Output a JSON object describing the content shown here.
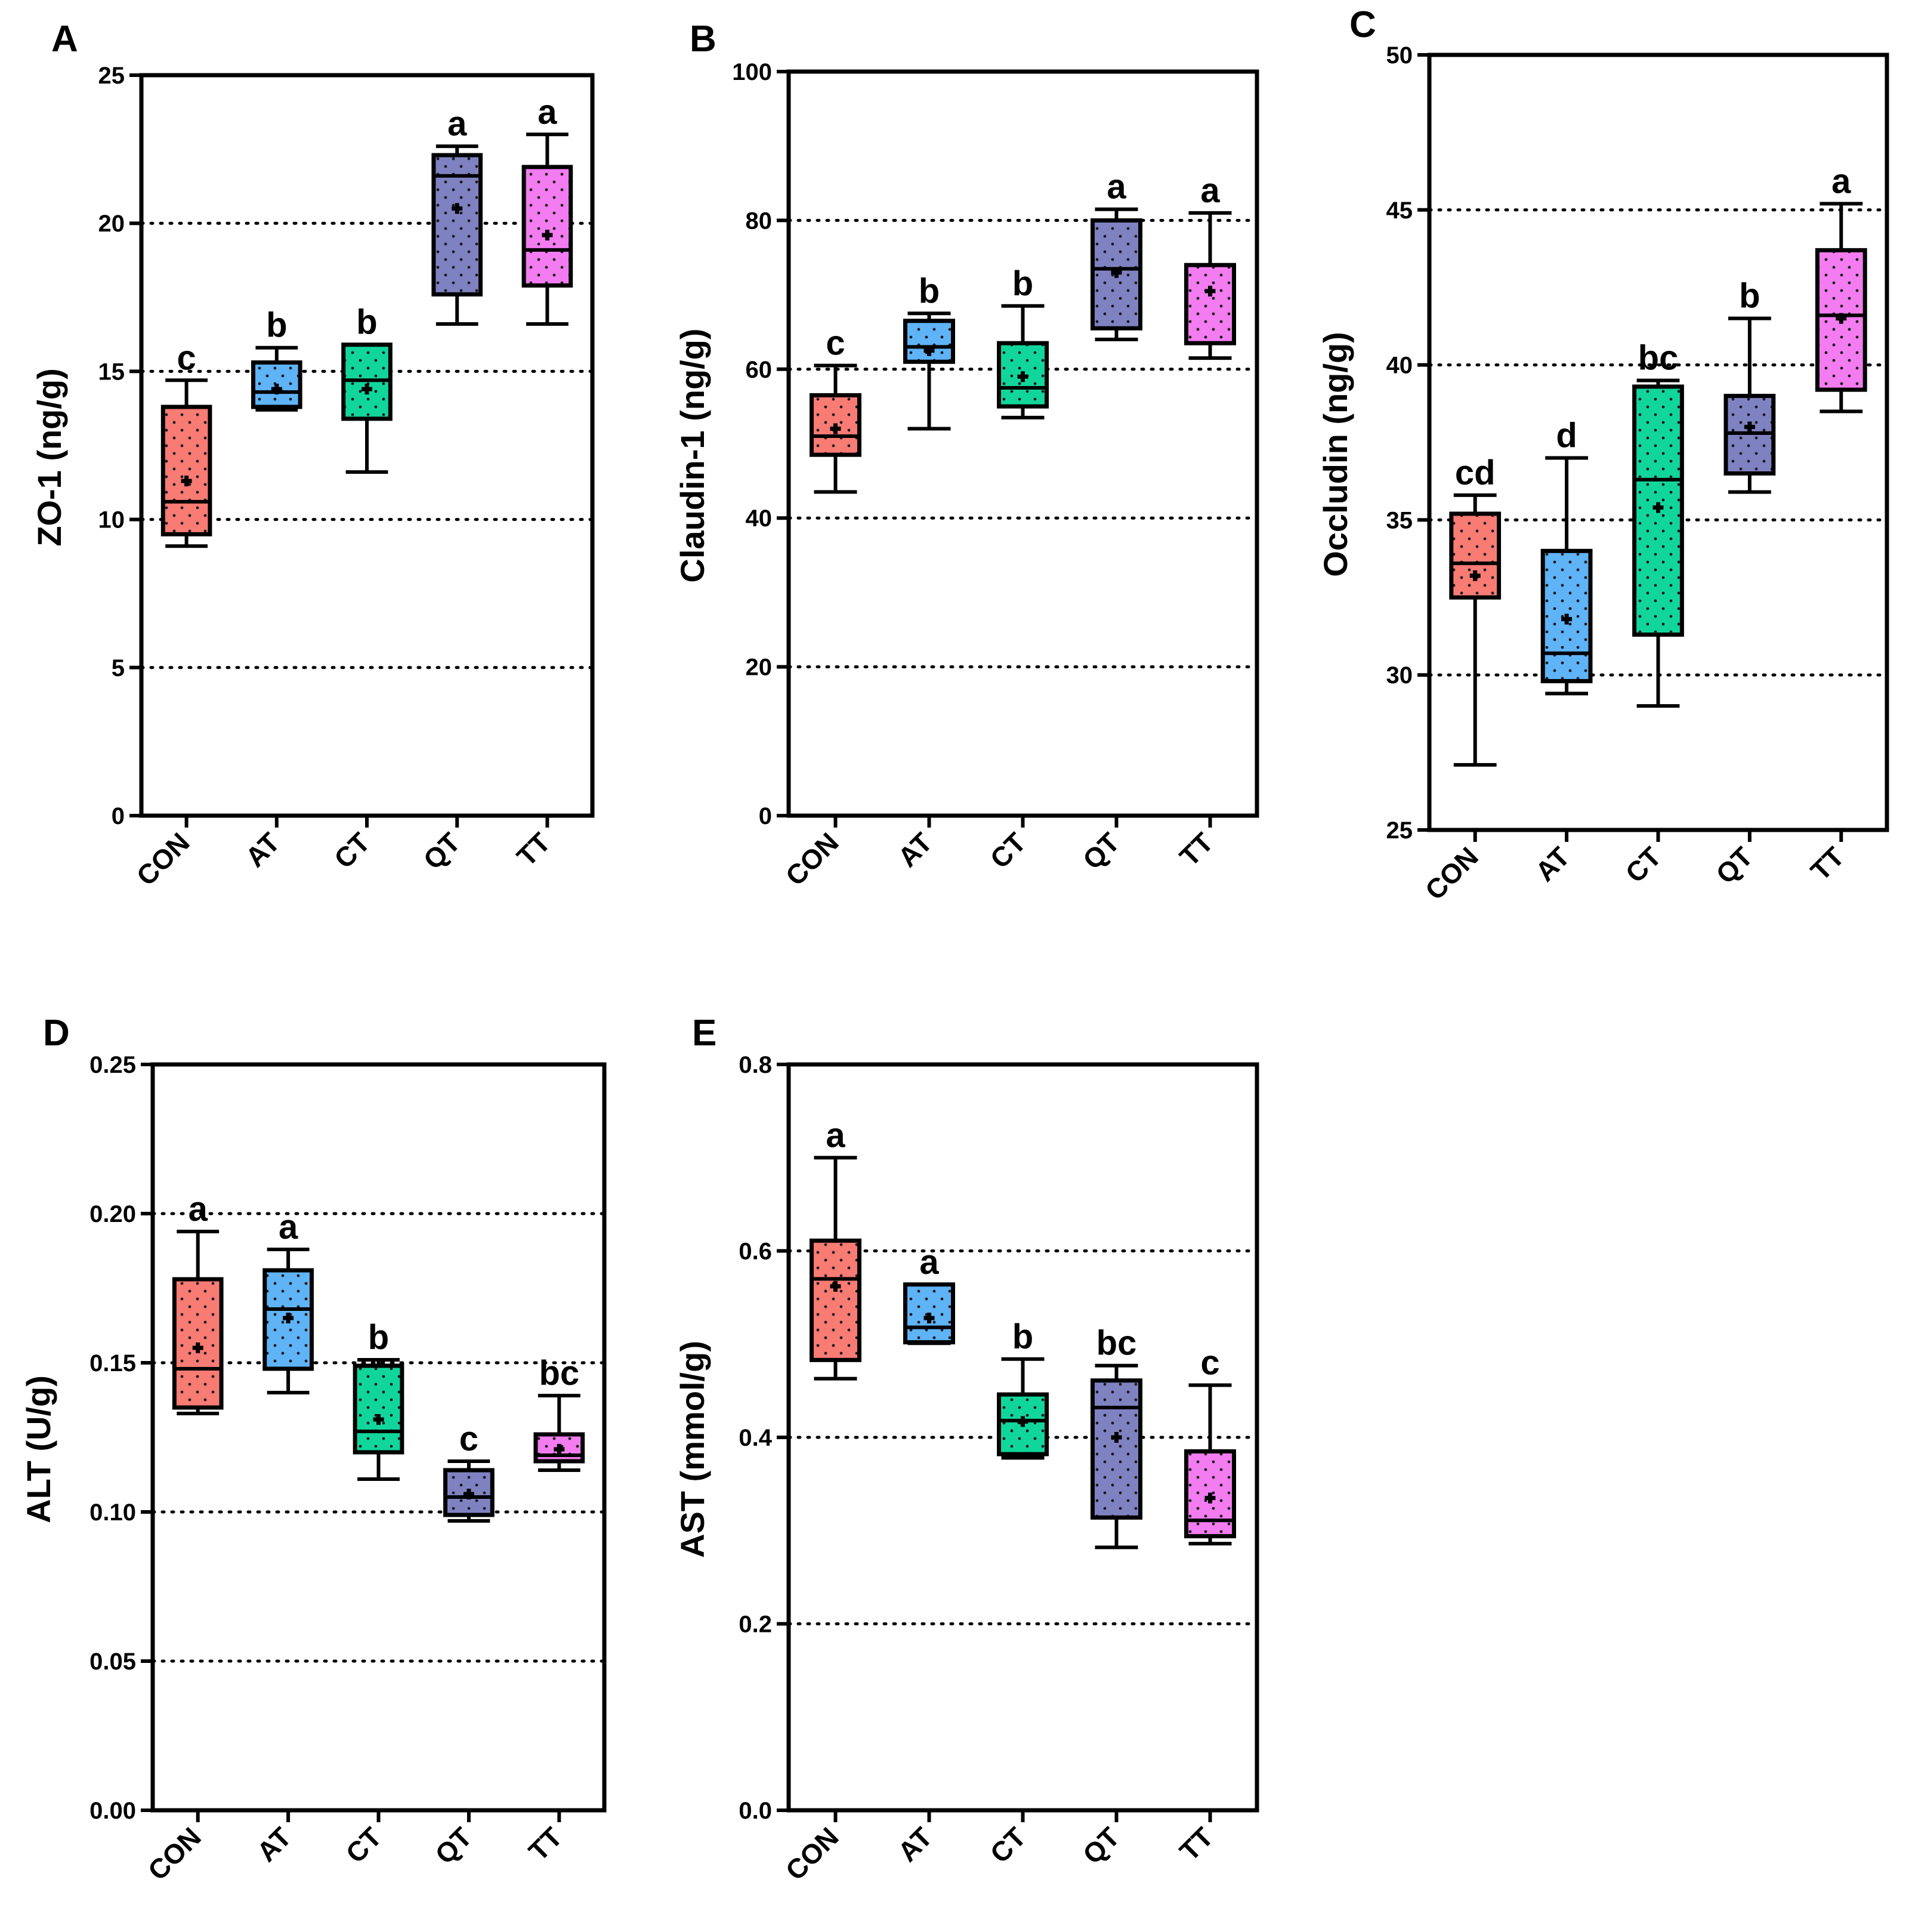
{
  "colors": {
    "CON": "#f87b74",
    "AT": "#5fb3f7",
    "CT": "#11d69c",
    "QT": "#7f82c1",
    "TT": "#f27cf0"
  },
  "chart_data": [
    {
      "panel": "A",
      "type": "box",
      "ylabel": "ZO-1 (ng/g)",
      "ylim": [
        0,
        25
      ],
      "yticks": [
        "0",
        "5",
        "10",
        "15",
        "20",
        "25"
      ],
      "gridlines": [
        5,
        10,
        15,
        20
      ],
      "categories": [
        "CON",
        "AT",
        "CT",
        "QT",
        "TT"
      ],
      "boxes": [
        {
          "min": 9.1,
          "q1": 9.5,
          "median": 10.6,
          "q3": 13.8,
          "max": 14.7,
          "mean": 11.3,
          "sig": "c"
        },
        {
          "min": 13.7,
          "q1": 13.8,
          "median": 14.3,
          "q3": 15.3,
          "max": 15.8,
          "mean": 14.4,
          "sig": "b"
        },
        {
          "min": 11.6,
          "q1": 13.4,
          "median": 14.7,
          "q3": 15.9,
          "max": 15.9,
          "mean": 14.4,
          "sig": "b"
        },
        {
          "min": 16.6,
          "q1": 17.6,
          "median": 21.6,
          "q3": 22.3,
          "max": 22.6,
          "mean": 20.5,
          "sig": "a"
        },
        {
          "min": 16.6,
          "q1": 17.9,
          "median": 19.1,
          "q3": 21.9,
          "max": 23.0,
          "mean": 19.6,
          "sig": "a"
        }
      ]
    },
    {
      "panel": "B",
      "type": "box",
      "ylabel": "Claudin-1 (ng/g)",
      "ylim": [
        0,
        100
      ],
      "yticks": [
        "0",
        "20",
        "40",
        "60",
        "80",
        "100"
      ],
      "gridlines": [
        20,
        40,
        60,
        80
      ],
      "categories": [
        "CON",
        "AT",
        "CT",
        "QT",
        "TT"
      ],
      "boxes": [
        {
          "min": 43.5,
          "q1": 48.5,
          "median": 51.0,
          "q3": 56.5,
          "max": 60.5,
          "mean": 52.0,
          "sig": "c"
        },
        {
          "min": 52.0,
          "q1": 61.0,
          "median": 63.0,
          "q3": 66.5,
          "max": 67.5,
          "mean": 62.5,
          "sig": "b"
        },
        {
          "min": 53.5,
          "q1": 55.0,
          "median": 57.5,
          "q3": 63.5,
          "max": 68.5,
          "mean": 59.0,
          "sig": "b"
        },
        {
          "min": 64.0,
          "q1": 65.5,
          "median": 73.5,
          "q3": 80.0,
          "max": 81.5,
          "mean": 73.0,
          "sig": "a"
        },
        {
          "min": 61.5,
          "q1": 63.5,
          "median": 74.0,
          "q3": 74.0,
          "max": 81.0,
          "mean": 70.5,
          "sig": "a"
        }
      ]
    },
    {
      "panel": "C",
      "type": "box",
      "ylabel": "Occludin (ng/g)",
      "ylim": [
        25,
        50
      ],
      "yticks": [
        "25",
        "30",
        "35",
        "40",
        "45",
        "50"
      ],
      "gridlines": [
        30,
        35,
        40,
        45
      ],
      "categories": [
        "CON",
        "AT",
        "CT",
        "QT",
        "TT"
      ],
      "boxes": [
        {
          "min": 27.1,
          "q1": 32.5,
          "median": 33.6,
          "q3": 35.2,
          "max": 35.8,
          "mean": 33.2,
          "sig": "cd"
        },
        {
          "min": 29.4,
          "q1": 29.8,
          "median": 30.7,
          "q3": 34.0,
          "max": 37.0,
          "mean": 31.8,
          "sig": "d"
        },
        {
          "min": 29.0,
          "q1": 31.3,
          "median": 36.3,
          "q3": 39.3,
          "max": 39.5,
          "mean": 35.4,
          "sig": "bc"
        },
        {
          "min": 35.9,
          "q1": 36.5,
          "median": 37.8,
          "q3": 39.0,
          "max": 41.5,
          "mean": 38.0,
          "sig": "b"
        },
        {
          "min": 38.5,
          "q1": 39.2,
          "median": 41.6,
          "q3": 43.7,
          "max": 45.2,
          "mean": 41.5,
          "sig": "a"
        }
      ]
    },
    {
      "panel": "D",
      "type": "box",
      "ylabel": "ALT (U/g)",
      "ylim": [
        0,
        0.25
      ],
      "yticks": [
        "0.00",
        "0.05",
        "0.10",
        "0.15",
        "0.20",
        "0.25"
      ],
      "gridlines": [
        0.05,
        0.1,
        0.15,
        0.2
      ],
      "categories": [
        "CON",
        "AT",
        "CT",
        "QT",
        "TT"
      ],
      "boxes": [
        {
          "min": 0.133,
          "q1": 0.135,
          "median": 0.148,
          "q3": 0.178,
          "max": 0.194,
          "mean": 0.155,
          "sig": "a"
        },
        {
          "min": 0.14,
          "q1": 0.148,
          "median": 0.168,
          "q3": 0.181,
          "max": 0.188,
          "mean": 0.165,
          "sig": "a"
        },
        {
          "min": 0.111,
          "q1": 0.12,
          "median": 0.127,
          "q3": 0.149,
          "max": 0.151,
          "mean": 0.131,
          "sig": "b"
        },
        {
          "min": 0.097,
          "q1": 0.099,
          "median": 0.105,
          "q3": 0.114,
          "max": 0.117,
          "mean": 0.106,
          "sig": "c"
        },
        {
          "min": 0.114,
          "q1": 0.117,
          "median": 0.119,
          "q3": 0.126,
          "max": 0.139,
          "mean": 0.121,
          "sig": "bc"
        }
      ]
    },
    {
      "panel": "E",
      "type": "box",
      "ylabel": "AST (mmol/g)",
      "ylim": [
        0,
        0.8
      ],
      "yticks": [
        "0.0",
        "0.2",
        "0.4",
        "0.6",
        "0.8"
      ],
      "gridlines": [
        0.2,
        0.4,
        0.6
      ],
      "categories": [
        "CON",
        "AT",
        "CT",
        "QT",
        "TT"
      ],
      "boxes": [
        {
          "min": 0.463,
          "q1": 0.483,
          "median": 0.57,
          "q3": 0.611,
          "max": 0.7,
          "mean": 0.562,
          "sig": "a"
        },
        {
          "min": 0.501,
          "q1": 0.502,
          "median": 0.518,
          "q3": 0.564,
          "max": 0.564,
          "mean": 0.528,
          "sig": "a"
        },
        {
          "min": 0.378,
          "q1": 0.382,
          "median": 0.418,
          "q3": 0.446,
          "max": 0.484,
          "mean": 0.417,
          "sig": "b"
        },
        {
          "min": 0.282,
          "q1": 0.314,
          "median": 0.432,
          "q3": 0.461,
          "max": 0.477,
          "mean": 0.4,
          "sig": "bc"
        },
        {
          "min": 0.286,
          "q1": 0.294,
          "median": 0.311,
          "q3": 0.385,
          "max": 0.456,
          "mean": 0.335,
          "sig": "c"
        }
      ]
    }
  ]
}
